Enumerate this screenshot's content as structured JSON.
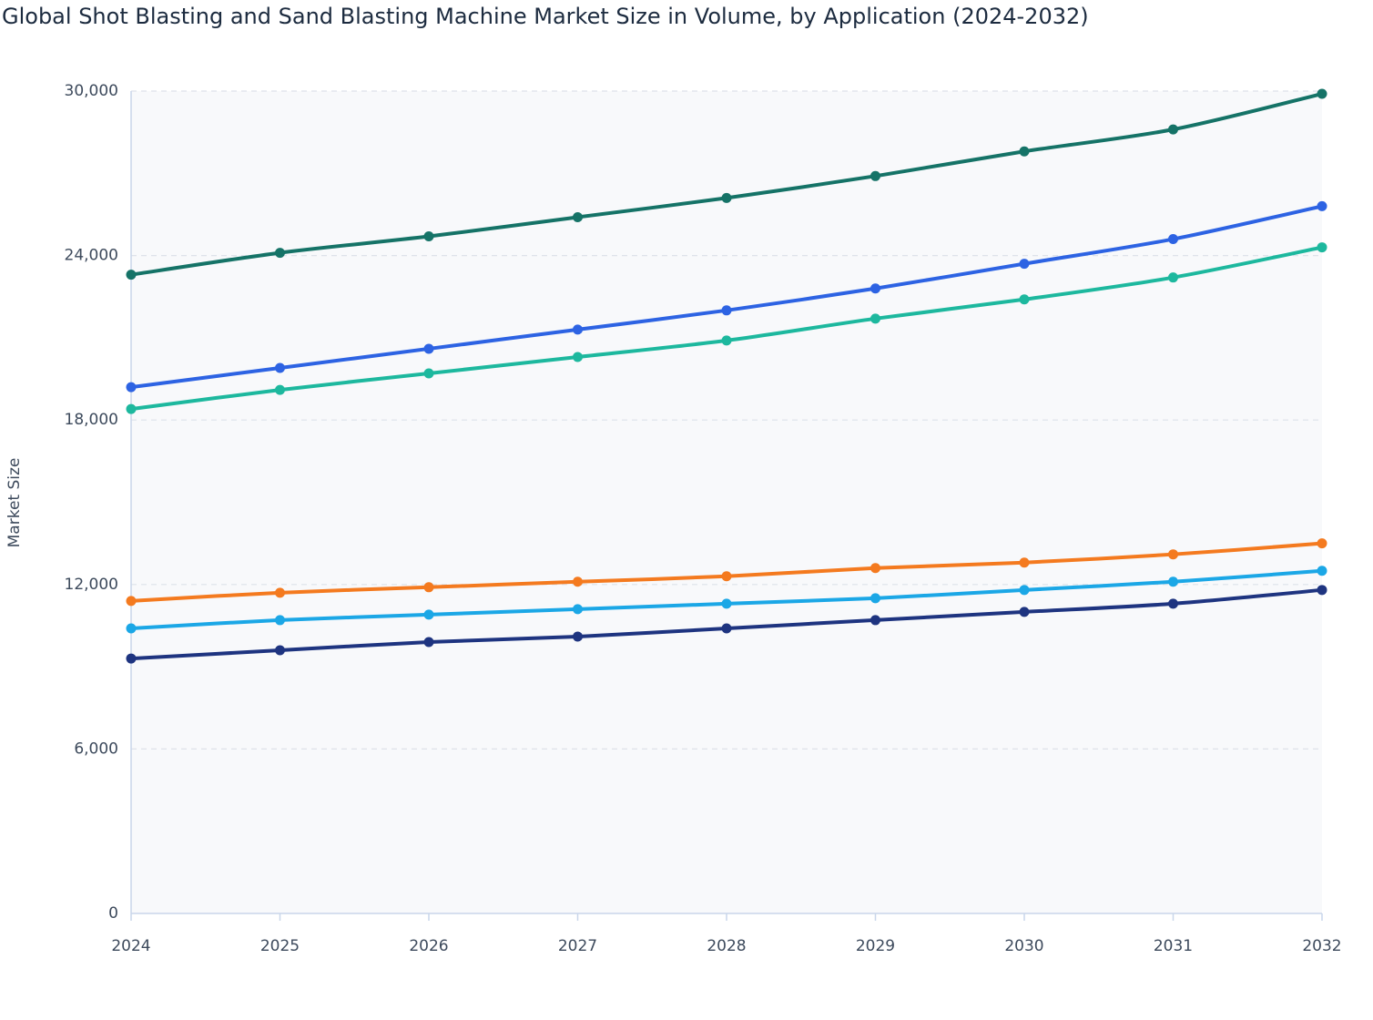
{
  "chart_data": {
    "type": "line",
    "title": "Global Shot Blasting and Sand Blasting Machine Market Size in Volume, by Application (2024-2032)",
    "y_label": "Market Size",
    "x": [
      2024,
      2025,
      2026,
      2027,
      2028,
      2029,
      2030,
      2031,
      2032
    ],
    "xlim": [
      2024,
      2032
    ],
    "xticks": [
      2024,
      2025,
      2026,
      2027,
      2028,
      2029,
      2030,
      2031,
      2032
    ],
    "ylim": [
      0,
      30000
    ],
    "yticks": [
      0,
      {
        "value": 6000,
        "label": "6,000"
      },
      {
        "value": 12000,
        "label": "12,000"
      },
      {
        "value": 18000,
        "label": "18,000"
      },
      {
        "value": 24000,
        "label": "24,000"
      },
      {
        "value": 30000,
        "label": "30,000"
      }
    ],
    "grid": true,
    "series": [
      {
        "color": "#157367",
        "values": [
          23300,
          24100,
          24700,
          25400,
          26100,
          26900,
          27800,
          28600,
          29900
        ]
      },
      {
        "color": "#2d63e3",
        "values": [
          19200,
          19900,
          20600,
          21300,
          22000,
          22800,
          23700,
          24600,
          25800
        ]
      },
      {
        "color": "#1db89e",
        "values": [
          18400,
          19100,
          19700,
          20300,
          20900,
          21700,
          22400,
          23200,
          24300
        ]
      },
      {
        "color": "#f47a1f",
        "values": [
          11400,
          11700,
          11900,
          12100,
          12300,
          12600,
          12800,
          13100,
          13500
        ]
      },
      {
        "color": "#1ba7e6",
        "values": [
          10400,
          10700,
          10900,
          11100,
          11300,
          11500,
          11800,
          12100,
          12500
        ]
      },
      {
        "color": "#1e3480",
        "values": [
          9300,
          9600,
          9900,
          10100,
          10400,
          10700,
          11000,
          11300,
          11800
        ]
      }
    ]
  }
}
